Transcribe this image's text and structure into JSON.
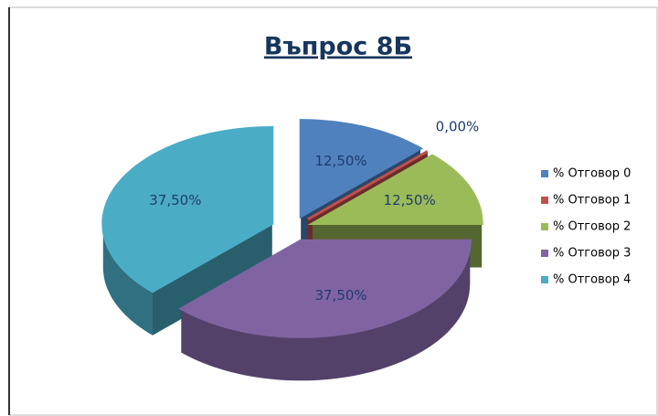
{
  "chart_data": {
    "type": "pie3d",
    "title": "Въпрос 8Б",
    "categories": [
      "% Отговор 0",
      "% Отговор 1",
      "% Отговор 2",
      "% Отговор 3",
      "% Отговор 4"
    ],
    "values": [
      12.5,
      0,
      12.5,
      37.5,
      37.5
    ],
    "value_labels": [
      "12,50%",
      "0,00%",
      "12,50%",
      "37,50%",
      "37,50%"
    ],
    "colors": [
      "#4f81bd",
      "#c0504d",
      "#9bbb59",
      "#8064a2",
      "#4bacc6"
    ],
    "legend": "right"
  }
}
